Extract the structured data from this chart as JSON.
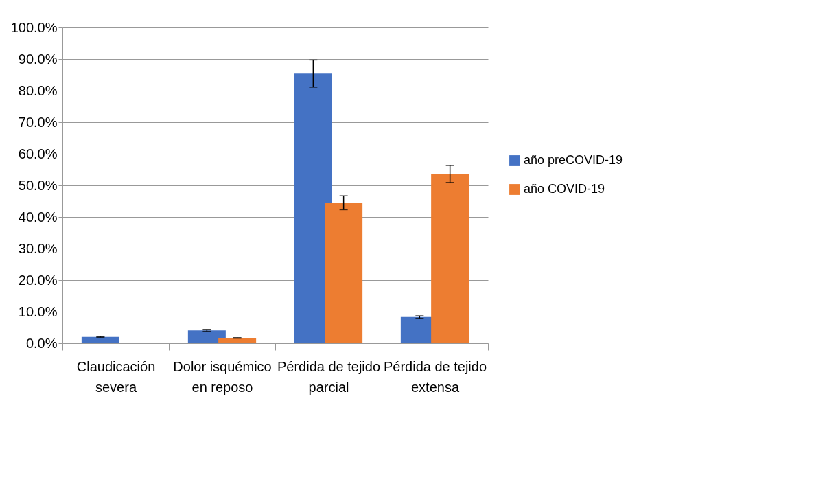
{
  "chart_data": {
    "type": "bar",
    "categories": [
      "Claudicación\nsevera",
      "Dolor isquémico\nen reposo",
      "Pérdida de tejido\nparcial",
      "Pérdida de tejido\nextensa"
    ],
    "series": [
      {
        "name": "año preCOVID-19",
        "color": "#4472c4",
        "values": [
          2.0,
          4.1,
          85.4,
          8.3
        ],
        "errors": [
          0.1,
          0.3,
          4.3,
          0.4
        ]
      },
      {
        "name": "año COVID-19",
        "color": "#ed7d31",
        "values": [
          0.0,
          1.7,
          44.5,
          53.6
        ],
        "errors": [
          null,
          0.1,
          2.2,
          2.7
        ]
      }
    ],
    "ylim": [
      0,
      100
    ],
    "yticks": [
      {
        "value": 0,
        "label": "0.0%"
      },
      {
        "value": 10,
        "label": "10.0%"
      },
      {
        "value": 20,
        "label": "20.0%"
      },
      {
        "value": 30,
        "label": "30.0%"
      },
      {
        "value": 40,
        "label": "40.0%"
      },
      {
        "value": 50,
        "label": "50.0%"
      },
      {
        "value": 60,
        "label": "60.0%"
      },
      {
        "value": 70,
        "label": "70.0%"
      },
      {
        "value": 80,
        "label": "80.0%"
      },
      {
        "value": 90,
        "label": "90.0%"
      },
      {
        "value": 100,
        "label": "100.0%"
      }
    ],
    "grid": "y",
    "legend": "right"
  }
}
